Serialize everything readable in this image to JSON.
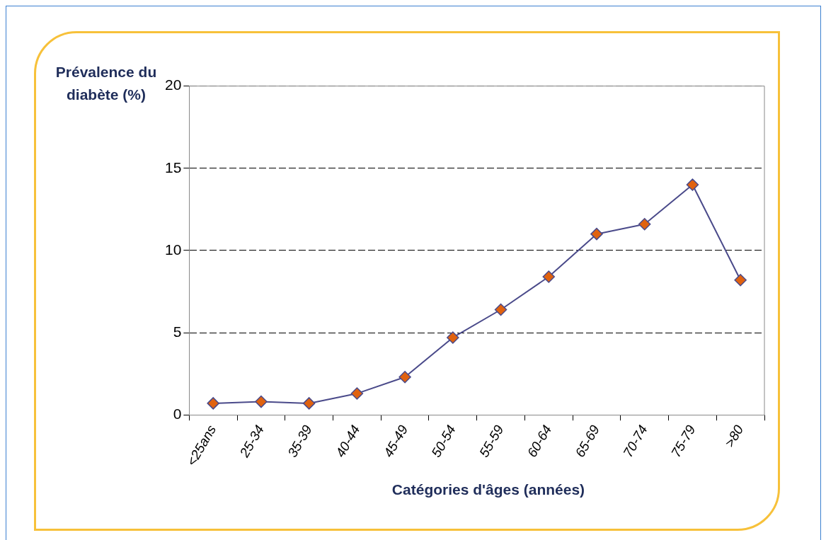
{
  "chart_data": {
    "type": "line",
    "ylabel": "Prévalence du diabète (%)",
    "xlabel": "Catégories d'âges (années)",
    "categories": [
      "<25ans",
      "25-34",
      "35-39",
      "40-44",
      "45-49",
      "50-54",
      "55-59",
      "60-64",
      "65-69",
      "70-74",
      "75-79",
      ">80"
    ],
    "series": [
      {
        "color": "#4a4a8a",
        "values": [
          0.7,
          0.8,
          0.7,
          1.3,
          2.3,
          4.7,
          6.4,
          8.4,
          11.0,
          11.6,
          14.0,
          8.2
        ]
      }
    ],
    "ylim": [
      0,
      20
    ],
    "yticks": [
      0,
      5,
      10,
      15,
      20
    ],
    "grid": "y",
    "legend": false,
    "marker": "diamond",
    "line_style": "solid"
  }
}
